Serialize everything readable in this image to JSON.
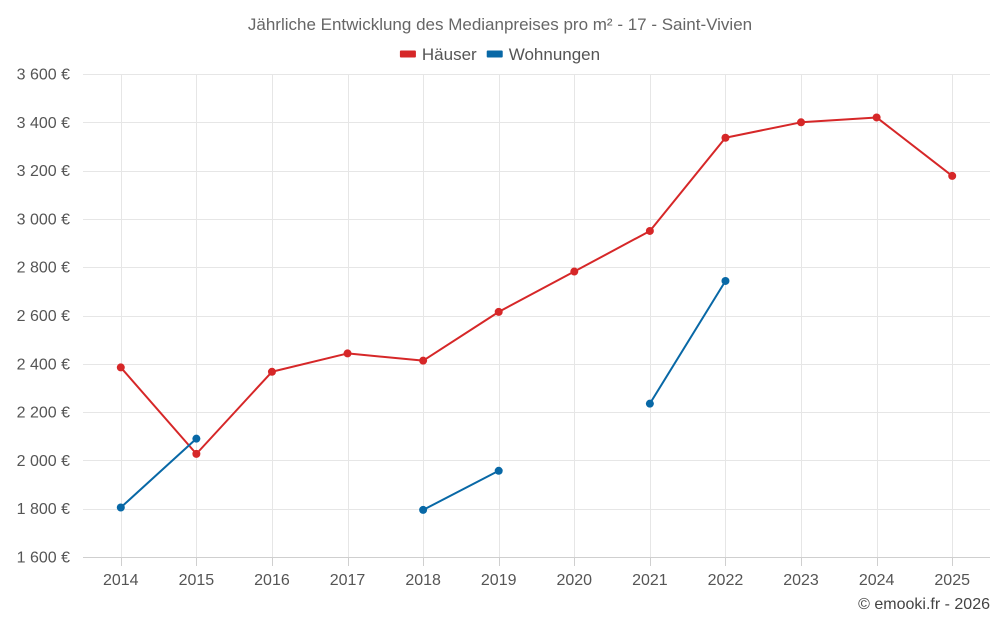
{
  "chart_data": {
    "type": "line",
    "title": "Jährliche Entwicklung des Medianpreises pro m² - 17 - Saint-Vivien",
    "x": [
      "2014",
      "2015",
      "2016",
      "2017",
      "2018",
      "2019",
      "2020",
      "2021",
      "2022",
      "2023",
      "2024",
      "2025"
    ],
    "ylim": [
      1600,
      3600
    ],
    "yticks": [
      1600,
      1800,
      2000,
      2200,
      2400,
      2600,
      2800,
      3000,
      3200,
      3400,
      3600
    ],
    "ytick_labels": [
      "1 600 €",
      "1 800 €",
      "2 000 €",
      "2 200 €",
      "2 400 €",
      "2 600 €",
      "2 800 €",
      "3 000 €",
      "3 200 €",
      "3 400 €",
      "3 600 €"
    ],
    "xlabel": "",
    "ylabel": "",
    "grid": true,
    "legend_position": "top-center",
    "series": [
      {
        "name": "Häuser",
        "color": "#d62728",
        "values": [
          2385,
          2027,
          2367,
          2443,
          2413,
          2615,
          2782,
          2950,
          3336,
          3400,
          3420,
          3178
        ]
      },
      {
        "name": "Wohnungen",
        "color": "#0868a6",
        "values": [
          1805,
          2090,
          null,
          null,
          1795,
          1957,
          null,
          2235,
          2743,
          null,
          null,
          null
        ]
      }
    ]
  },
  "credit": "© emooki.fr - 2026"
}
